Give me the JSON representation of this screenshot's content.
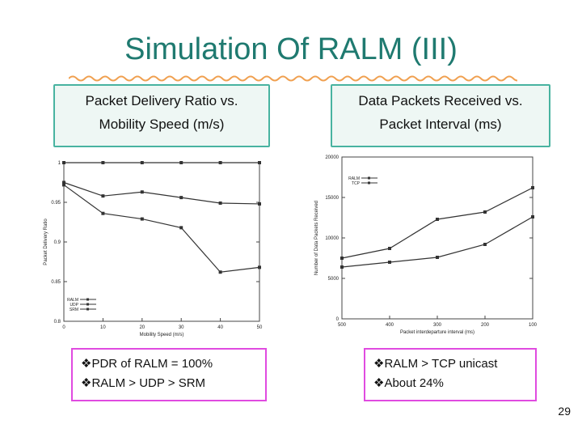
{
  "slide": {
    "title": "Simulation Of RALM (III)",
    "left_box": {
      "line1": "Packet Delivery Ratio vs.",
      "line2": "Mobility Speed (m/s)"
    },
    "right_box": {
      "line1": "Data Packets Received vs.",
      "line2": "Packet Interval (ms)"
    },
    "left_notes": [
      "PDR of RALM = 100%",
      "RALM > UDP > SRM"
    ],
    "right_notes": [
      "RALM > TCP unicast",
      "About 24%"
    ],
    "page_number": "29",
    "colors": {
      "title": "#1f7a70",
      "box_border": "#48b3a0",
      "note_border": "#e04be0",
      "wave": "#f0a050"
    }
  },
  "chart_data": [
    {
      "type": "line",
      "xlabel": "Mobility Speed (m/s)",
      "ylabel": "Packet Delivery Ratio",
      "xlim": [
        0,
        50
      ],
      "ylim": [
        0.8,
        1.0
      ],
      "x_ticks": [
        "0",
        "10",
        "20",
        "30",
        "40",
        "50"
      ],
      "y_ticks": [
        "0.8",
        "0.85",
        "0.9",
        "0.95",
        "1"
      ],
      "legend_position": "bottom-left",
      "grid": false,
      "series": [
        {
          "name": "RALM",
          "x": [
            0,
            10,
            20,
            30,
            40,
            50
          ],
          "y": [
            1.0,
            1.0,
            1.0,
            1.0,
            1.0,
            1.0
          ]
        },
        {
          "name": "UDP",
          "x": [
            0,
            10,
            20,
            30,
            40,
            50
          ],
          "y": [
            0.975,
            0.958,
            0.963,
            0.956,
            0.949,
            0.948
          ]
        },
        {
          "name": "SRM",
          "x": [
            0,
            10,
            20,
            30,
            40,
            50
          ],
          "y": [
            0.972,
            0.936,
            0.929,
            0.918,
            0.862,
            0.868
          ]
        }
      ]
    },
    {
      "type": "line",
      "xlabel": "Packet interdeparture interval (ms)",
      "ylabel": "Number of Data Packets Received",
      "xlim": [
        500,
        100
      ],
      "ylim": [
        0,
        20000
      ],
      "x_ticks": [
        "500",
        "400",
        "300",
        "200",
        "100"
      ],
      "y_ticks": [
        "0",
        "5000",
        "10000",
        "15000",
        "20000"
      ],
      "legend_position": "top-left",
      "grid": false,
      "series": [
        {
          "name": "RALM",
          "x": [
            500,
            400,
            300,
            200,
            100
          ],
          "y": [
            7500,
            8700,
            12300,
            13200,
            16200
          ]
        },
        {
          "name": "TCP",
          "x": [
            500,
            400,
            300,
            200,
            100
          ],
          "y": [
            6400,
            7000,
            7600,
            9200,
            12600
          ]
        }
      ]
    }
  ]
}
